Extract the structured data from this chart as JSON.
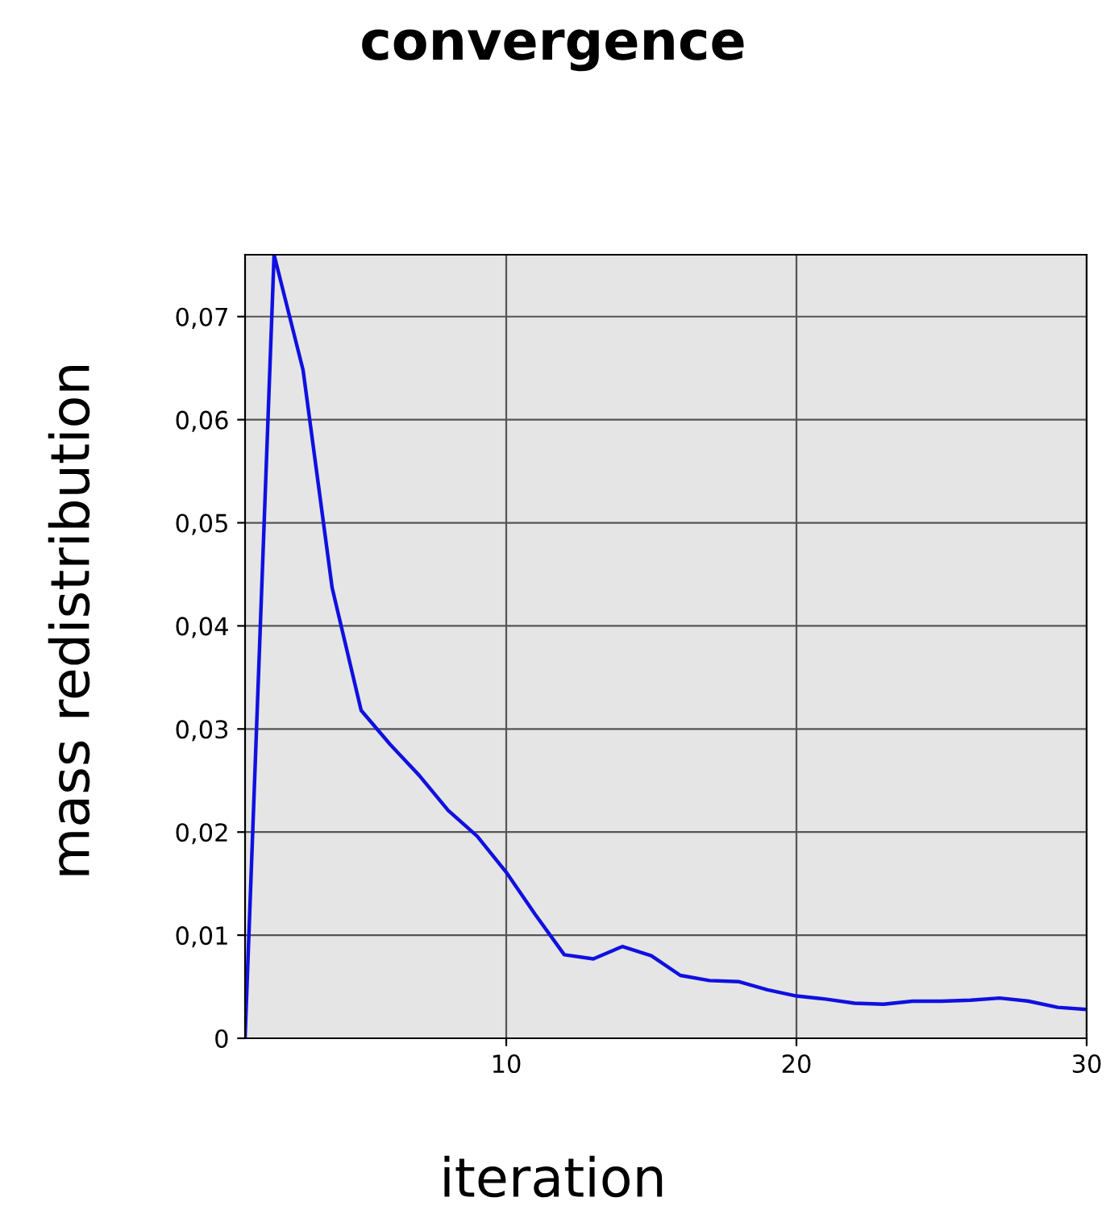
{
  "chart_data": {
    "type": "line",
    "title": "convergence",
    "xlabel": "iteration",
    "ylabel": "mass redistribution",
    "x": [
      1,
      2,
      3,
      4,
      5,
      6,
      7,
      8,
      9,
      10,
      11,
      12,
      13,
      14,
      15,
      16,
      17,
      18,
      19,
      20,
      21,
      22,
      23,
      24,
      25,
      26,
      27,
      28,
      29,
      30
    ],
    "series": [
      {
        "color": "#1010e0",
        "values": [
          0,
          0.076,
          0.0648,
          0.0437,
          0.0318,
          0.0285,
          0.0255,
          0.0221,
          0.0196,
          0.0161,
          0.012,
          0.0081,
          0.0077,
          0.0089,
          0.008,
          0.0061,
          0.0056,
          0.0055,
          0.0047,
          0.0041,
          0.0038,
          0.0034,
          0.0033,
          0.0036,
          0.0036,
          0.0037,
          0.0039,
          0.0036,
          0.003,
          0.0028
        ]
      }
    ],
    "xlim": [
      1,
      30
    ],
    "ylim": [
      0,
      0.076
    ],
    "xticks": [
      10,
      20,
      30
    ],
    "yticks": [
      0,
      {
        "value": 0.01,
        "label": "0,01"
      },
      {
        "value": 0.02,
        "label": "0,02"
      },
      {
        "value": 0.03,
        "label": "0,03"
      },
      {
        "value": 0.04,
        "label": "0,04"
      },
      {
        "value": 0.05,
        "label": "0,05"
      },
      {
        "value": 0.06,
        "label": "0,06"
      },
      {
        "value": 0.07,
        "label": "0,07"
      }
    ],
    "grid": true,
    "marker": "none",
    "line_style": "solid"
  }
}
